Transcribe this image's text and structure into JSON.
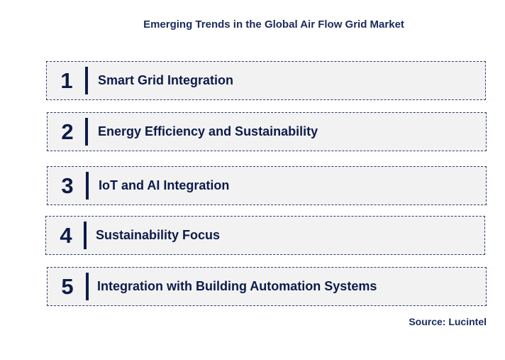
{
  "title": "Emerging Trends in the Global Air Flow Grid Market",
  "trends": [
    {
      "number": "1",
      "label": "Smart Grid Integration"
    },
    {
      "number": "2",
      "label": "Energy Efficiency and Sustainability"
    },
    {
      "number": "3",
      "label": "IoT and AI Integration"
    },
    {
      "number": "4",
      "label": "Sustainability Focus"
    },
    {
      "number": "5",
      "label": "Integration with Building Automation Systems"
    }
  ],
  "source": "Source: Lucintel",
  "colors": {
    "text_dark_blue": "#0d1b4a",
    "box_background": "#f2f2f2"
  }
}
